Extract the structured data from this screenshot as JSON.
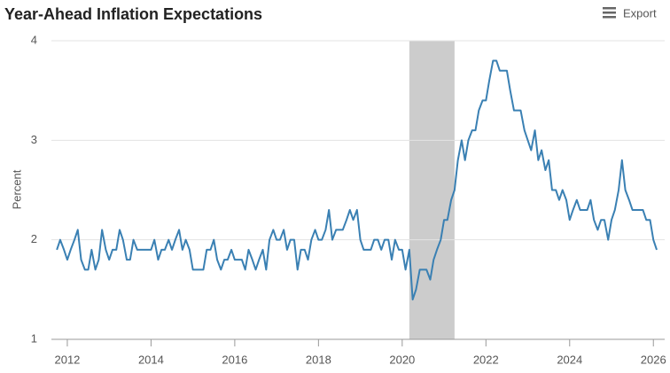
{
  "chart_data": {
    "type": "line",
    "title": "Year-Ahead Inflation Expectations",
    "export_label": "Export",
    "y_label": "Percent",
    "xlim": [
      2011.62,
      2026.27
    ],
    "xticks": [
      2012,
      2014,
      2016,
      2018,
      2020,
      2022,
      2024,
      2026
    ],
    "ylim": [
      1,
      4
    ],
    "yticks": [
      1,
      2,
      3,
      4
    ],
    "grid": true,
    "shading": [
      2020.17,
      2021.25
    ],
    "shading_color": "#cccccc",
    "x": [
      2011.75,
      2011.83,
      2011.92,
      2012.0,
      2012.08,
      2012.17,
      2012.25,
      2012.33,
      2012.42,
      2012.5,
      2012.58,
      2012.67,
      2012.75,
      2012.83,
      2012.92,
      2013.0,
      2013.08,
      2013.17,
      2013.25,
      2013.33,
      2013.42,
      2013.5,
      2013.58,
      2013.67,
      2013.75,
      2013.83,
      2013.92,
      2014.0,
      2014.08,
      2014.17,
      2014.25,
      2014.33,
      2014.42,
      2014.5,
      2014.58,
      2014.67,
      2014.75,
      2014.83,
      2014.92,
      2015.0,
      2015.08,
      2015.17,
      2015.25,
      2015.33,
      2015.42,
      2015.5,
      2015.58,
      2015.67,
      2015.75,
      2015.83,
      2015.92,
      2016.0,
      2016.08,
      2016.17,
      2016.25,
      2016.33,
      2016.42,
      2016.5,
      2016.58,
      2016.67,
      2016.75,
      2016.83,
      2016.92,
      2017.0,
      2017.08,
      2017.17,
      2017.25,
      2017.33,
      2017.42,
      2017.5,
      2017.58,
      2017.67,
      2017.75,
      2017.83,
      2017.92,
      2018.0,
      2018.08,
      2018.17,
      2018.25,
      2018.33,
      2018.42,
      2018.5,
      2018.58,
      2018.67,
      2018.75,
      2018.83,
      2018.92,
      2019.0,
      2019.08,
      2019.17,
      2019.25,
      2019.33,
      2019.42,
      2019.5,
      2019.58,
      2019.67,
      2019.75,
      2019.83,
      2019.92,
      2020.0,
      2020.08,
      2020.17,
      2020.25,
      2020.33,
      2020.42,
      2020.5,
      2020.58,
      2020.67,
      2020.75,
      2020.83,
      2020.92,
      2021.0,
      2021.08,
      2021.17,
      2021.25,
      2021.33,
      2021.42,
      2021.5,
      2021.58,
      2021.67,
      2021.75,
      2021.83,
      2021.92,
      2022.0,
      2022.08,
      2022.17,
      2022.25,
      2022.33,
      2022.42,
      2022.5,
      2022.58,
      2022.67,
      2022.75,
      2022.83,
      2022.92,
      2023.0,
      2023.08,
      2023.17,
      2023.25,
      2023.33,
      2023.42,
      2023.5,
      2023.58,
      2023.67,
      2023.75,
      2023.83,
      2023.92,
      2024.0,
      2024.08,
      2024.17,
      2024.25,
      2024.33,
      2024.42,
      2024.5,
      2024.58,
      2024.67,
      2024.75,
      2024.83,
      2024.92,
      2025.0,
      2025.08,
      2025.17,
      2025.25,
      2025.33,
      2025.42,
      2025.5,
      2025.58,
      2025.67,
      2025.75,
      2025.83,
      2025.92,
      2026.0,
      2026.08
    ],
    "series": [
      {
        "name": "Year-Ahead Inflation Expectations",
        "color": "#3a80b3",
        "values": [
          1.9,
          2.0,
          1.9,
          1.8,
          1.9,
          2.0,
          2.1,
          1.8,
          1.7,
          1.7,
          1.9,
          1.7,
          1.8,
          2.1,
          1.9,
          1.8,
          1.9,
          1.9,
          2.1,
          2.0,
          1.8,
          1.8,
          2.0,
          1.9,
          1.9,
          1.9,
          1.9,
          1.9,
          2.0,
          1.8,
          1.9,
          1.9,
          2.0,
          1.9,
          2.0,
          2.1,
          1.9,
          2.0,
          1.9,
          1.7,
          1.7,
          1.7,
          1.7,
          1.9,
          1.9,
          2.0,
          1.8,
          1.7,
          1.8,
          1.8,
          1.9,
          1.8,
          1.8,
          1.8,
          1.7,
          1.9,
          1.8,
          1.7,
          1.8,
          1.9,
          1.7,
          2.0,
          2.1,
          2.0,
          2.0,
          2.1,
          1.9,
          2.0,
          2.0,
          1.7,
          1.9,
          1.9,
          1.8,
          2.0,
          2.1,
          2.0,
          2.0,
          2.1,
          2.3,
          2.0,
          2.1,
          2.1,
          2.1,
          2.2,
          2.3,
          2.2,
          2.3,
          2.0,
          1.9,
          1.9,
          1.9,
          2.0,
          2.0,
          1.9,
          2.0,
          2.0,
          1.8,
          2.0,
          1.9,
          1.9,
          1.7,
          1.9,
          1.4,
          1.5,
          1.7,
          1.7,
          1.7,
          1.6,
          1.8,
          1.9,
          2.0,
          2.2,
          2.2,
          2.4,
          2.5,
          2.8,
          3.0,
          2.8,
          3.0,
          3.1,
          3.1,
          3.3,
          3.4,
          3.4,
          3.6,
          3.8,
          3.8,
          3.7,
          3.7,
          3.7,
          3.5,
          3.3,
          3.3,
          3.3,
          3.1,
          3.0,
          2.9,
          3.1,
          2.8,
          2.9,
          2.7,
          2.8,
          2.5,
          2.5,
          2.4,
          2.5,
          2.4,
          2.2,
          2.3,
          2.4,
          2.3,
          2.3,
          2.3,
          2.4,
          2.2,
          2.1,
          2.2,
          2.2,
          2.0,
          2.2,
          2.3,
          2.5,
          2.8,
          2.5,
          2.4,
          2.3,
          2.3,
          2.3,
          2.3,
          2.2,
          2.2,
          2.0,
          1.9
        ]
      }
    ]
  }
}
